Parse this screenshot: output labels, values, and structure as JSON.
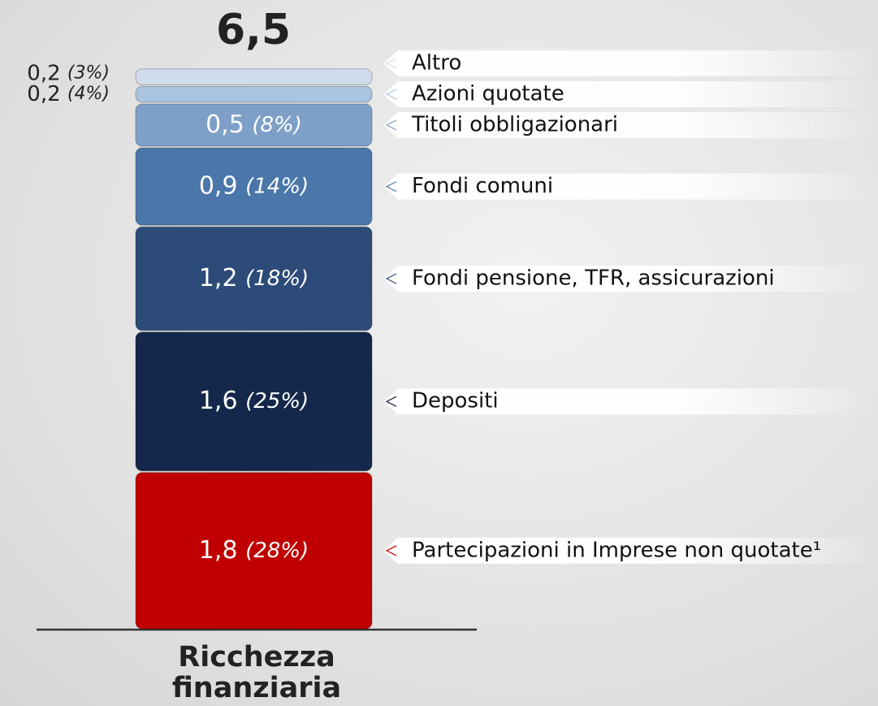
{
  "chart_data": {
    "type": "stacked-bar",
    "total": 6.5,
    "total_label": "6,5",
    "categories": [
      "Ricchezza finanziaria"
    ],
    "ylim": [
      0,
      6.5
    ],
    "series": [
      {
        "name": "Partecipazioni in Imprese non quotate¹",
        "color": "#c00000",
        "values": [
          1.8
        ],
        "value_labels": [
          "1,8"
        ],
        "shares": [
          28
        ],
        "share_labels": [
          "(28%)"
        ]
      },
      {
        "name": "Depositi",
        "color": "#14284b",
        "values": [
          1.6
        ],
        "value_labels": [
          "1,6"
        ],
        "shares": [
          25
        ],
        "share_labels": [
          "(25%)"
        ]
      },
      {
        "name": "Fondi pensione, TFR, assicurazioni",
        "color": "#2c4b78",
        "values": [
          1.2
        ],
        "value_labels": [
          "1,2"
        ],
        "shares": [
          18
        ],
        "share_labels": [
          "(18%)"
        ]
      },
      {
        "name": "Fondi comuni",
        "color": "#4a76aa",
        "values": [
          0.9
        ],
        "value_labels": [
          "0,9"
        ],
        "shares": [
          14
        ],
        "share_labels": [
          "(14%)"
        ]
      },
      {
        "name": "Titoli obbligazionari",
        "color": "#7d9fc8",
        "values": [
          0.5
        ],
        "value_labels": [
          "0,5"
        ],
        "shares": [
          8
        ],
        "share_labels": [
          "(8%)"
        ]
      },
      {
        "name": "Azioni quotate",
        "color": "#a9c3e0",
        "values": [
          0.2
        ],
        "value_labels": [
          "0,2"
        ],
        "shares": [
          4
        ],
        "share_labels": [
          "(4%)"
        ]
      },
      {
        "name": "Altro",
        "color": "#d0dceb",
        "values": [
          0.2
        ],
        "value_labels": [
          "0,2"
        ],
        "shares": [
          3
        ],
        "share_labels": [
          "(3%)"
        ]
      }
    ]
  }
}
